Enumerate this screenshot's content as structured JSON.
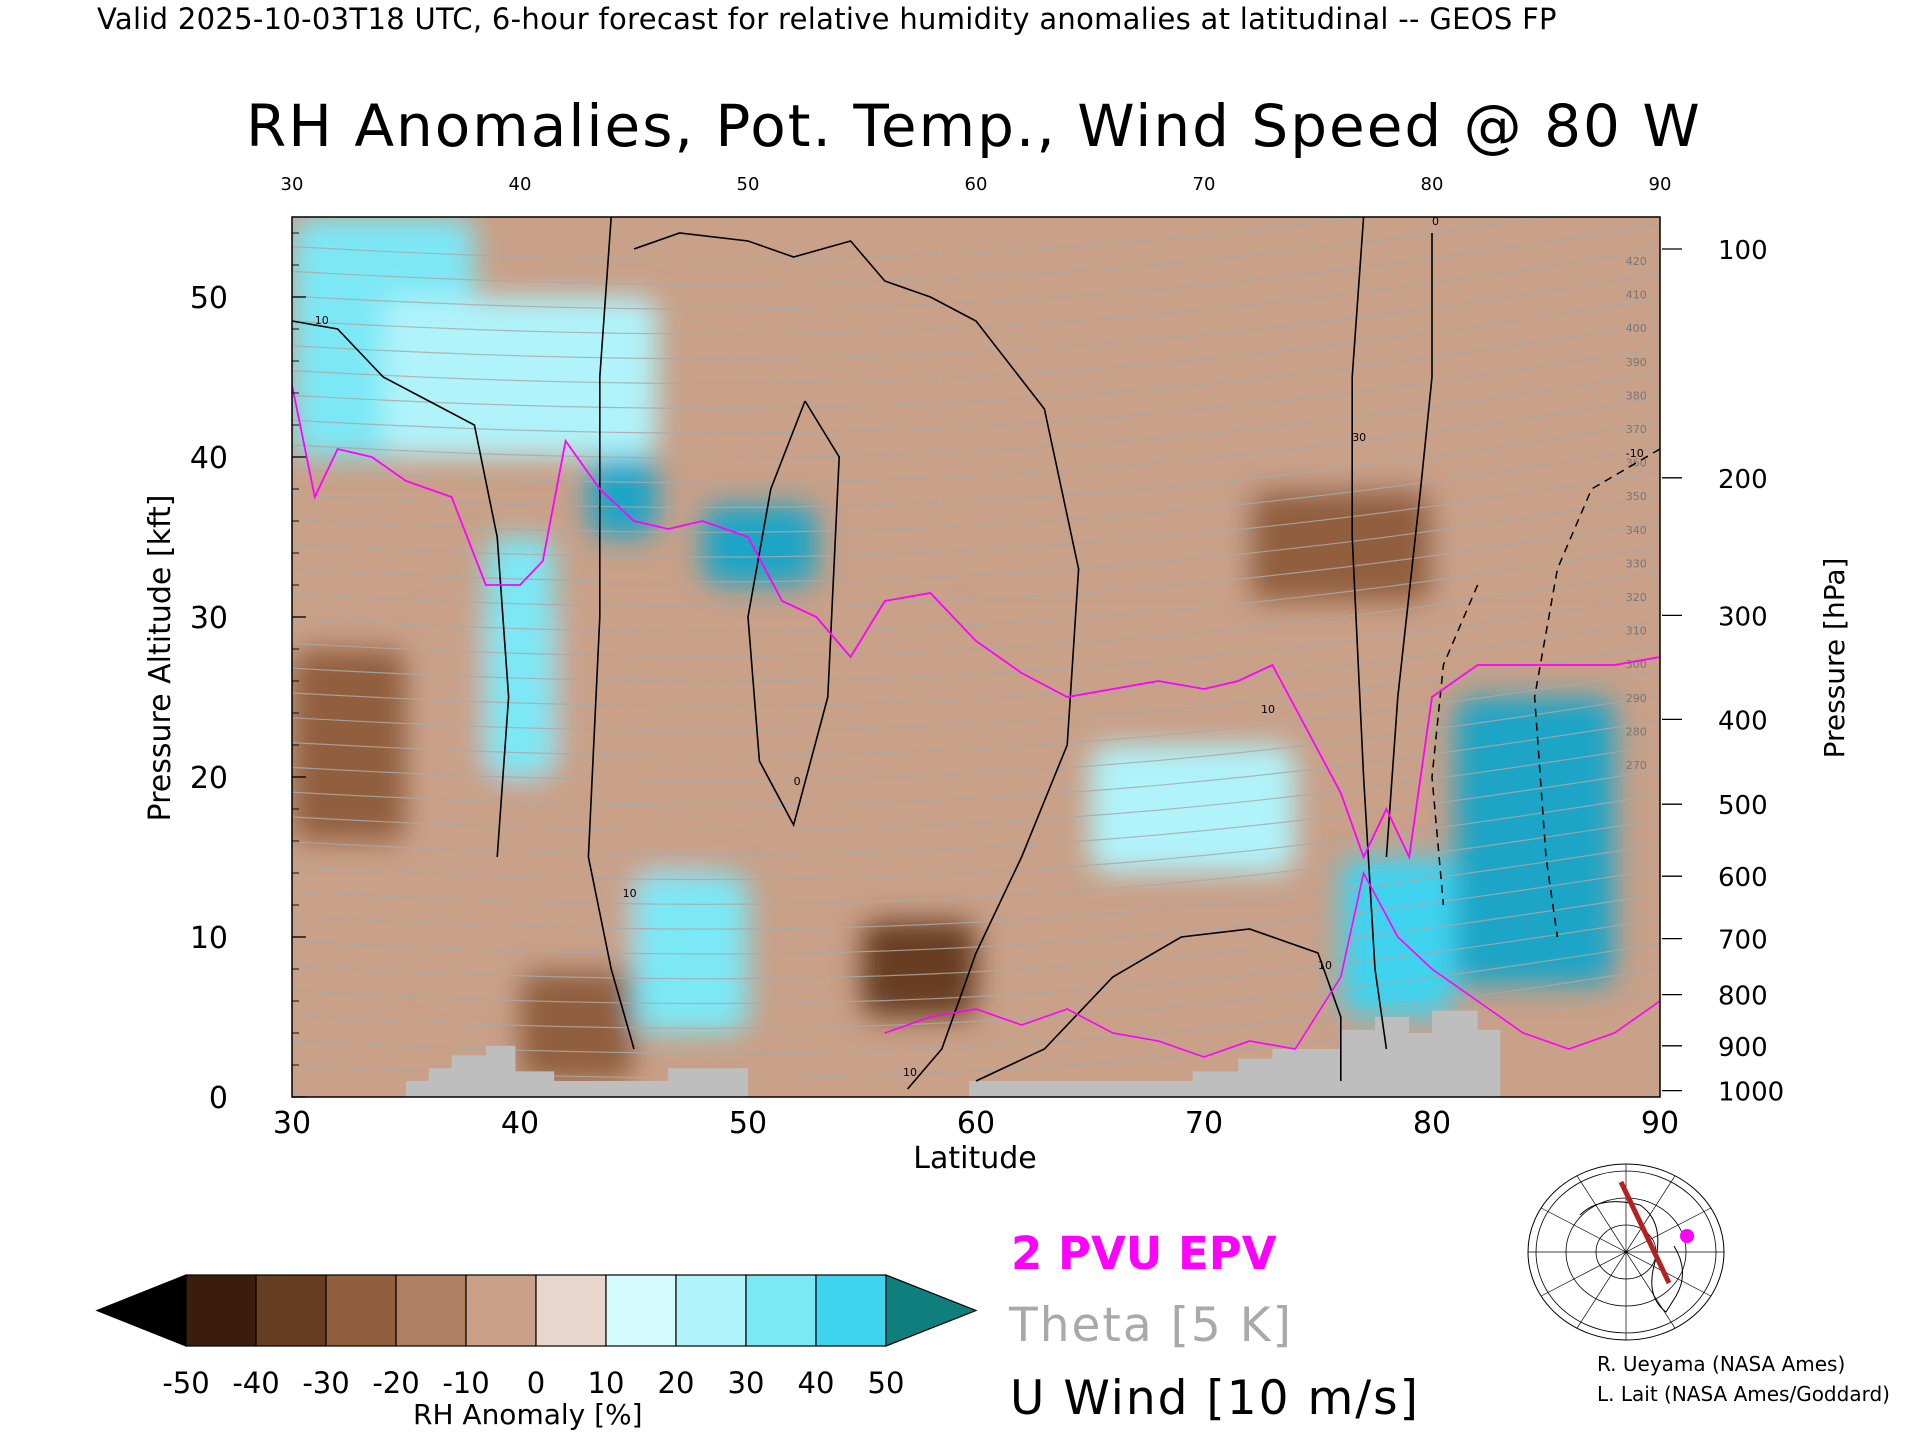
{
  "header": "Valid 2025-10-03T18 UTC, 6-hour forecast for relative humidity anomalies at latitudinal -- GEOS FP",
  "chart_data": {
    "type": "heatmap",
    "title": "RH Anomalies, Pot. Temp., Wind Speed @ 80 W",
    "xlabel": "Latitude",
    "ylabel": "Pressure Altitude [kft]",
    "ylabel_right": "Pressure [hPa]",
    "xlim": [
      30,
      90
    ],
    "ylim": [
      0,
      55
    ],
    "x_ticks": [
      "30",
      "40",
      "50",
      "60",
      "70",
      "80",
      "90"
    ],
    "y_ticks": [
      "0",
      "10",
      "20",
      "30",
      "40",
      "50"
    ],
    "pressure_ticks": [
      {
        "label": "100",
        "kft": 53.0
      },
      {
        "label": "200",
        "kft": 38.7
      },
      {
        "label": "300",
        "kft": 30.1
      },
      {
        "label": "400",
        "kft": 23.6
      },
      {
        "label": "500",
        "kft": 18.3
      },
      {
        "label": "600",
        "kft": 13.8
      },
      {
        "label": "700",
        "kft": 9.9
      },
      {
        "label": "800",
        "kft": 6.4
      },
      {
        "label": "900",
        "kft": 3.2
      },
      {
        "label": "1000",
        "kft": 0.4
      }
    ],
    "theta_labels": [
      "420",
      "410",
      "400",
      "390",
      "380",
      "370",
      "360",
      "350",
      "340",
      "330",
      "320",
      "310",
      "300",
      "290",
      "280",
      "270"
    ],
    "wind_contour_labels": [
      "10",
      "0",
      "30",
      "-10"
    ],
    "colorbar": {
      "title": "RH Anomaly [%]",
      "ticks": [
        "-50",
        "-40",
        "-30",
        "-20",
        "-10",
        "0",
        "10",
        "20",
        "30",
        "40",
        "50"
      ],
      "colors": [
        "#000000",
        "#3b1d0c",
        "#683e22",
        "#915e3e",
        "#b07e61",
        "#c9a088",
        "#e8d6cd",
        "#d6fbfd",
        "#b0f3fa",
        "#7be8f6",
        "#3fd3ef",
        "#1ba5c6",
        "#0f7f7e"
      ]
    },
    "legend": [
      "2 PVU EPV",
      "Theta [5 K]",
      "U Wind [10 m/s]"
    ],
    "legend_colors": {
      "epv": "#ff00ff",
      "theta": "#a9a9a9",
      "wind": "#000000"
    },
    "terrain_color": "#bebebe",
    "terrain": [
      {
        "lat": 35.0,
        "kft": 0.0
      },
      {
        "lat": 35.0,
        "kft": 1.0
      },
      {
        "lat": 36.0,
        "kft": 1.0
      },
      {
        "lat": 36.0,
        "kft": 1.8
      },
      {
        "lat": 37.0,
        "kft": 1.8
      },
      {
        "lat": 37.0,
        "kft": 2.6
      },
      {
        "lat": 38.5,
        "kft": 2.6
      },
      {
        "lat": 38.5,
        "kft": 3.2
      },
      {
        "lat": 39.8,
        "kft": 3.2
      },
      {
        "lat": 39.8,
        "kft": 1.6
      },
      {
        "lat": 41.5,
        "kft": 1.6
      },
      {
        "lat": 41.5,
        "kft": 1.0
      },
      {
        "lat": 46.5,
        "kft": 1.0
      },
      {
        "lat": 46.5,
        "kft": 1.8
      },
      {
        "lat": 50.0,
        "kft": 1.8
      },
      {
        "lat": 50.0,
        "kft": 0.0
      },
      {
        "lat": 59.7,
        "kft": 0.0
      },
      {
        "lat": 59.7,
        "kft": 1.0
      },
      {
        "lat": 69.5,
        "kft": 1.0
      },
      {
        "lat": 69.5,
        "kft": 1.6
      },
      {
        "lat": 71.5,
        "kft": 1.6
      },
      {
        "lat": 71.5,
        "kft": 2.4
      },
      {
        "lat": 73.0,
        "kft": 2.4
      },
      {
        "lat": 73.0,
        "kft": 3.0
      },
      {
        "lat": 76.0,
        "kft": 3.0
      },
      {
        "lat": 76.0,
        "kft": 4.2
      },
      {
        "lat": 77.5,
        "kft": 4.2
      },
      {
        "lat": 77.5,
        "kft": 5.0
      },
      {
        "lat": 79.0,
        "kft": 5.0
      },
      {
        "lat": 79.0,
        "kft": 4.0
      },
      {
        "lat": 80.0,
        "kft": 4.0
      },
      {
        "lat": 80.0,
        "kft": 5.4
      },
      {
        "lat": 82.0,
        "kft": 5.4
      },
      {
        "lat": 82.0,
        "kft": 4.2
      },
      {
        "lat": 83.0,
        "kft": 4.2
      },
      {
        "lat": 83.0,
        "kft": 0.0
      }
    ],
    "epv_2pvu_line": [
      {
        "lat": 30.0,
        "kft": 44.5
      },
      {
        "lat": 31.0,
        "kft": 37.5
      },
      {
        "lat": 32.0,
        "kft": 40.5
      },
      {
        "lat": 33.5,
        "kft": 40.0
      },
      {
        "lat": 35.0,
        "kft": 38.5
      },
      {
        "lat": 37.0,
        "kft": 37.5
      },
      {
        "lat": 38.5,
        "kft": 32.0
      },
      {
        "lat": 40.0,
        "kft": 32.0
      },
      {
        "lat": 41.0,
        "kft": 33.5
      },
      {
        "lat": 42.0,
        "kft": 41.0
      },
      {
        "lat": 43.5,
        "kft": 38.0
      },
      {
        "lat": 45.0,
        "kft": 36.0
      },
      {
        "lat": 46.5,
        "kft": 35.5
      },
      {
        "lat": 48.0,
        "kft": 36.0
      },
      {
        "lat": 50.0,
        "kft": 35.0
      },
      {
        "lat": 51.5,
        "kft": 31.0
      },
      {
        "lat": 53.0,
        "kft": 30.0
      },
      {
        "lat": 54.5,
        "kft": 27.5
      },
      {
        "lat": 56.0,
        "kft": 31.0
      },
      {
        "lat": 58.0,
        "kft": 31.5
      },
      {
        "lat": 60.0,
        "kft": 28.5
      },
      {
        "lat": 62.0,
        "kft": 26.5
      },
      {
        "lat": 64.0,
        "kft": 25.0
      },
      {
        "lat": 66.0,
        "kft": 25.5
      },
      {
        "lat": 68.0,
        "kft": 26.0
      },
      {
        "lat": 70.0,
        "kft": 25.5
      },
      {
        "lat": 71.5,
        "kft": 26.0
      },
      {
        "lat": 73.0,
        "kft": 27.0
      },
      {
        "lat": 74.5,
        "kft": 23.0
      },
      {
        "lat": 76.0,
        "kft": 19.0
      },
      {
        "lat": 77.0,
        "kft": 15.0
      },
      {
        "lat": 78.0,
        "kft": 18.0
      },
      {
        "lat": 79.0,
        "kft": 15.0
      },
      {
        "lat": 80.0,
        "kft": 25.0
      },
      {
        "lat": 82.0,
        "kft": 27.0
      },
      {
        "lat": 85.0,
        "kft": 27.0
      },
      {
        "lat": 88.0,
        "kft": 27.0
      },
      {
        "lat": 90.0,
        "kft": 27.5
      }
    ],
    "epv_low_line": [
      {
        "lat": 56.0,
        "kft": 4.0
      },
      {
        "lat": 58.0,
        "kft": 5.0
      },
      {
        "lat": 60.0,
        "kft": 5.5
      },
      {
        "lat": 62.0,
        "kft": 4.5
      },
      {
        "lat": 64.0,
        "kft": 5.5
      },
      {
        "lat": 66.0,
        "kft": 4.0
      },
      {
        "lat": 68.0,
        "kft": 3.5
      },
      {
        "lat": 70.0,
        "kft": 2.5
      },
      {
        "lat": 72.0,
        "kft": 3.5
      },
      {
        "lat": 74.0,
        "kft": 3.0
      },
      {
        "lat": 76.0,
        "kft": 7.5
      },
      {
        "lat": 77.0,
        "kft": 14.0
      },
      {
        "lat": 78.5,
        "kft": 10.0
      },
      {
        "lat": 80.0,
        "kft": 8.0
      },
      {
        "lat": 82.0,
        "kft": 6.0
      },
      {
        "lat": 84.0,
        "kft": 4.0
      },
      {
        "lat": 86.0,
        "kft": 3.0
      },
      {
        "lat": 88.0,
        "kft": 4.0
      },
      {
        "lat": 90.0,
        "kft": 6.0
      }
    ],
    "u_wind_contours": [
      [
        {
          "lat": 30.0,
          "kft": 48.5
        },
        {
          "lat": 32.0,
          "kft": 48.0
        },
        {
          "lat": 34.0,
          "kft": 45.0
        },
        {
          "lat": 36.0,
          "kft": 43.5
        },
        {
          "lat": 38.0,
          "kft": 42.0
        },
        {
          "lat": 39.0,
          "kft": 35.0
        },
        {
          "lat": 39.5,
          "kft": 25.0
        },
        {
          "lat": 39.0,
          "kft": 15.0
        }
      ],
      [
        {
          "lat": 44.0,
          "kft": 55.0
        },
        {
          "lat": 43.5,
          "kft": 45.0
        },
        {
          "lat": 43.5,
          "kft": 30.0
        },
        {
          "lat": 43.0,
          "kft": 15.0
        },
        {
          "lat": 44.0,
          "kft": 8.0
        },
        {
          "lat": 45.0,
          "kft": 3.0
        }
      ],
      [
        {
          "lat": 45.0,
          "kft": 53.0
        },
        {
          "lat": 47.0,
          "kft": 54.0
        },
        {
          "lat": 50.0,
          "kft": 53.5
        },
        {
          "lat": 52.0,
          "kft": 52.5
        },
        {
          "lat": 54.5,
          "kft": 53.5
        },
        {
          "lat": 56.0,
          "kft": 51.0
        },
        {
          "lat": 58.0,
          "kft": 50.0
        },
        {
          "lat": 60.0,
          "kft": 48.5
        },
        {
          "lat": 63.0,
          "kft": 43.0
        },
        {
          "lat": 64.5,
          "kft": 33.0
        },
        {
          "lat": 64.0,
          "kft": 22.0
        },
        {
          "lat": 62.0,
          "kft": 15.0
        },
        {
          "lat": 60.0,
          "kft": 9.0
        },
        {
          "lat": 58.5,
          "kft": 3.0
        },
        {
          "lat": 57.0,
          "kft": 0.5
        }
      ],
      [
        {
          "lat": 52.5,
          "kft": 43.5
        },
        {
          "lat": 51.0,
          "kft": 38.0
        },
        {
          "lat": 50.0,
          "kft": 30.0
        },
        {
          "lat": 50.5,
          "kft": 21.0
        },
        {
          "lat": 52.0,
          "kft": 17.0
        },
        {
          "lat": 53.5,
          "kft": 25.0
        },
        {
          "lat": 54.0,
          "kft": 40.0
        },
        {
          "lat": 52.5,
          "kft": 43.5
        }
      ],
      [
        {
          "lat": 77.0,
          "kft": 55.0
        },
        {
          "lat": 76.5,
          "kft": 45.0
        },
        {
          "lat": 76.5,
          "kft": 35.0
        },
        {
          "lat": 77.0,
          "kft": 20.0
        },
        {
          "lat": 77.5,
          "kft": 8.0
        },
        {
          "lat": 78.0,
          "kft": 3.0
        }
      ],
      [
        {
          "lat": 80.0,
          "kft": 54.0
        },
        {
          "lat": 80.0,
          "kft": 45.0
        },
        {
          "lat": 79.5,
          "kft": 38.0
        },
        {
          "lat": 78.5,
          "kft": 25.0
        },
        {
          "lat": 78.0,
          "kft": 15.0
        }
      ],
      [
        {
          "lat": 60.0,
          "kft": 1.0
        },
        {
          "lat": 63.0,
          "kft": 3.0
        },
        {
          "lat": 66.0,
          "kft": 7.5
        },
        {
          "lat": 69.0,
          "kft": 10.0
        },
        {
          "lat": 72.0,
          "kft": 10.5
        },
        {
          "lat": 75.0,
          "kft": 9.0
        },
        {
          "lat": 76.0,
          "kft": 5.0
        },
        {
          "lat": 76.0,
          "kft": 1.0
        }
      ]
    ],
    "u_wind_dashed_contours": [
      [
        {
          "lat": 90.0,
          "kft": 40.5
        },
        {
          "lat": 87.0,
          "kft": 38.0
        },
        {
          "lat": 85.5,
          "kft": 33.0
        },
        {
          "lat": 84.5,
          "kft": 25.0
        },
        {
          "lat": 85.0,
          "kft": 15.0
        },
        {
          "lat": 85.5,
          "kft": 10.0
        }
      ],
      [
        {
          "lat": 82.0,
          "kft": 32.0
        },
        {
          "lat": 80.5,
          "kft": 27.0
        },
        {
          "lat": 80.0,
          "kft": 20.0
        },
        {
          "lat": 80.5,
          "kft": 12.0
        }
      ]
    ],
    "rh_anomaly_regions": [
      {
        "lat": [
          30,
          38
        ],
        "kft": [
          40,
          55
        ],
        "rh": 25
      },
      {
        "lat": [
          34,
          46
        ],
        "kft": [
          40,
          50
        ],
        "rh": 15
      },
      {
        "lat": [
          43,
          46
        ],
        "kft": [
          35,
          40
        ],
        "rh": 48
      },
      {
        "lat": [
          48,
          53
        ],
        "kft": [
          32,
          37
        ],
        "rh": 48
      },
      {
        "lat": [
          30,
          35
        ],
        "kft": [
          16,
          28
        ],
        "rh": -35
      },
      {
        "lat": [
          36,
          48
        ],
        "kft": [
          7,
          30
        ],
        "rh": -15
      },
      {
        "lat": [
          38.5,
          41.5
        ],
        "kft": [
          20,
          35
        ],
        "rh": 25
      },
      {
        "lat": [
          45,
          50
        ],
        "kft": [
          4,
          14
        ],
        "rh": 30
      },
      {
        "lat": [
          55,
          60
        ],
        "kft": [
          5,
          11
        ],
        "rh": -40
      },
      {
        "lat": [
          40,
          45
        ],
        "kft": [
          1,
          8
        ],
        "rh": -30
      },
      {
        "lat": [
          60,
          90
        ],
        "kft": [
          33,
          55
        ],
        "rh": -15
      },
      {
        "lat": [
          72,
          80
        ],
        "kft": [
          31,
          38
        ],
        "rh": -35
      },
      {
        "lat": [
          81,
          88
        ],
        "kft": [
          7,
          25
        ],
        "rh": 50
      },
      {
        "lat": [
          76,
          81
        ],
        "kft": [
          5,
          15
        ],
        "rh": 40
      },
      {
        "lat": [
          65,
          74
        ],
        "kft": [
          14,
          22
        ],
        "rh": 15
      }
    ]
  },
  "inset_map": {
    "description_color": "#b22222",
    "marker_color": "#ff00ff"
  },
  "credits": [
    "R. Ueyama (NASA Ames)",
    "L. Lait (NASA Ames/Goddard)"
  ]
}
